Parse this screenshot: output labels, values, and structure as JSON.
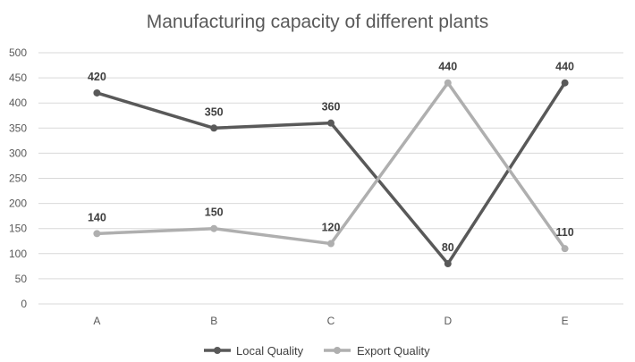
{
  "chart_data": {
    "type": "line",
    "title": "Manufacturing capacity of different plants",
    "categories": [
      "A",
      "B",
      "C",
      "D",
      "E"
    ],
    "ylim": [
      0,
      500
    ],
    "yticks": [
      0,
      50,
      100,
      150,
      200,
      250,
      300,
      350,
      400,
      450,
      500
    ],
    "grid": true,
    "legend_position": "bottom",
    "series": [
      {
        "name": "Local Quality",
        "values": [
          420,
          350,
          360,
          80,
          440
        ],
        "color": "#595959"
      },
      {
        "name": "Export Quality",
        "values": [
          140,
          150,
          120,
          440,
          110
        ],
        "color": "#afafaf"
      }
    ]
  }
}
